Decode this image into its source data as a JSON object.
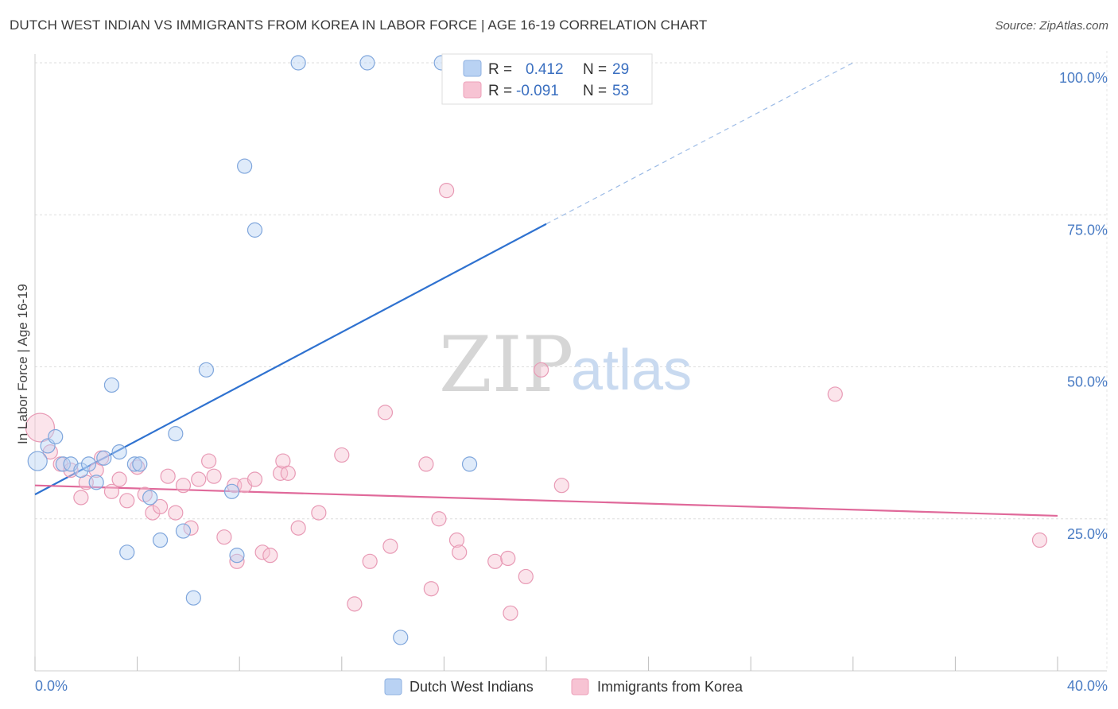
{
  "title": "DUTCH WEST INDIAN VS IMMIGRANTS FROM KOREA IN LABOR FORCE | AGE 16-19 CORRELATION CHART",
  "source": "Source: ZipAtlas.com",
  "watermark": {
    "zip": "ZIP",
    "atlas": "atlas"
  },
  "colors": {
    "blue": "#4a7cc4",
    "blue_fill": "#b9d2f3",
    "blue_line": "#2f72d0",
    "pink": "#e87fa3",
    "pink_fill": "#f7c3d3",
    "pink_line": "#e0699a"
  },
  "chart_data": {
    "type": "scatter",
    "title": "DUTCH WEST INDIAN VS IMMIGRANTS FROM KOREA IN LABOR FORCE | AGE 16-19 CORRELATION CHART",
    "ylabel": "In Labor Force | Age 16-19",
    "xlim": [
      0,
      40
    ],
    "ylim": [
      0,
      104
    ],
    "x_ticks": [
      "0.0%",
      "40.0%"
    ],
    "y_ticks": [
      {
        "value": 25,
        "label": "25.0%"
      },
      {
        "value": 50,
        "label": "50.0%"
      },
      {
        "value": 75,
        "label": "75.0%"
      },
      {
        "value": 100,
        "label": "100.0%"
      }
    ],
    "legend": [
      {
        "name": "Dutch West Indians",
        "r_label": "R =",
        "r": "0.412",
        "n_label": "N =",
        "n": "29"
      },
      {
        "name": "Immigrants from Korea",
        "r_label": "R =",
        "r": "-0.091",
        "n_label": "N =",
        "n": "53"
      }
    ],
    "series": [
      {
        "name": "Dutch West Indians",
        "points": [
          [
            0.1,
            34.5,
            12
          ],
          [
            0.5,
            37,
            9
          ],
          [
            0.8,
            38.5,
            9
          ],
          [
            1.1,
            34,
            9
          ],
          [
            1.4,
            34,
            9
          ],
          [
            1.8,
            33,
            9
          ],
          [
            2.1,
            34,
            9
          ],
          [
            2.4,
            31,
            9
          ],
          [
            2.7,
            35,
            9
          ],
          [
            3.0,
            47,
            9
          ],
          [
            3.3,
            36,
            9
          ],
          [
            3.6,
            19.5,
            9
          ],
          [
            3.9,
            34,
            9
          ],
          [
            4.1,
            34,
            9
          ],
          [
            4.5,
            28.5,
            9
          ],
          [
            4.9,
            21.5,
            9
          ],
          [
            5.5,
            39,
            9
          ],
          [
            5.8,
            23,
            9
          ],
          [
            6.2,
            12,
            9
          ],
          [
            6.7,
            49.5,
            9
          ],
          [
            7.7,
            29.5,
            9
          ],
          [
            7.9,
            19,
            9
          ],
          [
            8.2,
            83,
            9
          ],
          [
            8.6,
            72.5,
            9
          ],
          [
            10.3,
            100,
            9
          ],
          [
            13.0,
            100,
            9
          ],
          [
            14.3,
            5.5,
            9
          ],
          [
            15.9,
            100,
            9
          ],
          [
            17.0,
            34,
            9
          ]
        ],
        "trend": {
          "x0": 0,
          "y0": 29,
          "x1_solid": 20,
          "y1_solid": 73.5,
          "x1_dashed": 32,
          "y1_dashed": 100
        }
      },
      {
        "name": "Immigrants from Korea",
        "points": [
          [
            0.2,
            40,
            18
          ],
          [
            0.6,
            36,
            9
          ],
          [
            1.0,
            34,
            9
          ],
          [
            1.4,
            33,
            9
          ],
          [
            1.8,
            28.5,
            9
          ],
          [
            2.0,
            31,
            9
          ],
          [
            2.4,
            33,
            9
          ],
          [
            2.6,
            35,
            9
          ],
          [
            3.0,
            29.5,
            9
          ],
          [
            3.3,
            31.5,
            9
          ],
          [
            3.6,
            28,
            9
          ],
          [
            4.0,
            33.5,
            9
          ],
          [
            4.3,
            29,
            9
          ],
          [
            4.6,
            26,
            9
          ],
          [
            4.9,
            27,
            9
          ],
          [
            5.2,
            32,
            9
          ],
          [
            5.5,
            26,
            9
          ],
          [
            5.8,
            30.5,
            9
          ],
          [
            6.1,
            23.5,
            9
          ],
          [
            6.4,
            31.5,
            9
          ],
          [
            6.8,
            34.5,
            9
          ],
          [
            7.0,
            32,
            9
          ],
          [
            7.4,
            22,
            9
          ],
          [
            7.8,
            30.5,
            9
          ],
          [
            7.9,
            18,
            9
          ],
          [
            8.2,
            30.5,
            9
          ],
          [
            8.6,
            31.5,
            9
          ],
          [
            8.9,
            19.5,
            9
          ],
          [
            9.2,
            19,
            9
          ],
          [
            9.6,
            32.5,
            9
          ],
          [
            9.7,
            34.5,
            9
          ],
          [
            10.3,
            23.5,
            9
          ],
          [
            11.1,
            26,
            9
          ],
          [
            12.0,
            35.5,
            9
          ],
          [
            12.5,
            11,
            9
          ],
          [
            13.1,
            18,
            9
          ],
          [
            13.7,
            42.5,
            9
          ],
          [
            13.9,
            20.5,
            9
          ],
          [
            15.3,
            34,
            9
          ],
          [
            15.5,
            13.5,
            9
          ],
          [
            15.8,
            25,
            9
          ],
          [
            16.1,
            79,
            9
          ],
          [
            16.5,
            21.5,
            9
          ],
          [
            16.6,
            19.5,
            9
          ],
          [
            18.0,
            18,
            9
          ],
          [
            18.5,
            18.5,
            9
          ],
          [
            18.6,
            9.5,
            9
          ],
          [
            19.2,
            15.5,
            9
          ],
          [
            19.8,
            49.5,
            9
          ],
          [
            20.6,
            30.5,
            9
          ],
          [
            31.3,
            45.5,
            9
          ],
          [
            39.3,
            21.5,
            9
          ],
          [
            9.9,
            32.5,
            9
          ]
        ],
        "trend": {
          "x0": 0,
          "y0": 30.5,
          "x1": 40,
          "y1": 25.5
        }
      }
    ]
  }
}
